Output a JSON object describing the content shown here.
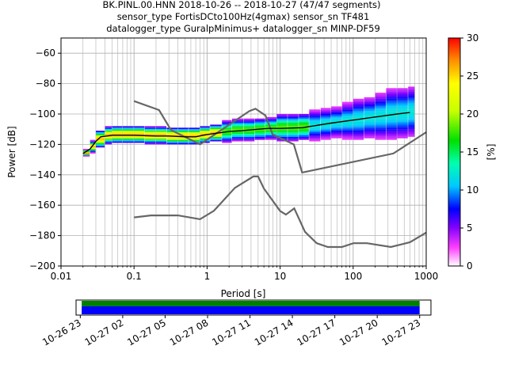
{
  "figure": {
    "title_lines": [
      "BK.PINL.00.HNN   2018-10-26 -- 2018-10-27  (47/47 segments)",
      "sensor_type FortisDCto100Hz(4gmax) sensor_sn TF481",
      "datalogger_type GuralpMinimus+ datalogger_sn MINP-DF59"
    ]
  },
  "colors": {
    "noise_model": "#666666",
    "mean_line": "#000000",
    "grid": "#b0b0b0",
    "coverage_green": "#008000",
    "coverage_blue": "#0000ff"
  },
  "chart_data": [
    {
      "type": "heatmap",
      "name_role": "probabilistic power spectral density",
      "xlabel": "Period [s]",
      "ylabel": "Power [dB]",
      "xscale": "log",
      "xlim": [
        0.01,
        1000
      ],
      "ylim": [
        -200,
        -50
      ],
      "x_ticks": [
        0.01,
        0.1,
        1,
        10,
        100,
        1000
      ],
      "x_tick_labels": [
        "0.01",
        "0.1",
        "1",
        "10",
        "100",
        "1000"
      ],
      "y_ticks": [
        -200,
        -180,
        -160,
        -140,
        -120,
        -100,
        -80,
        -60
      ],
      "y_tick_labels": [
        "−200",
        "−180",
        "−160",
        "−140",
        "−120",
        "−100",
        "−80",
        "−60"
      ],
      "grid": true,
      "colorbar": {
        "label": "[%]",
        "range": [
          0,
          30
        ],
        "ticks": [
          0,
          5,
          10,
          15,
          20,
          25,
          30
        ],
        "tick_labels": [
          "0",
          "5",
          "10",
          "15",
          "20",
          "25",
          "30"
        ],
        "colormap": "pqlx"
      },
      "mean_curve": {
        "period": [
          0.02,
          0.025,
          0.03,
          0.035,
          0.05,
          0.1,
          0.2,
          0.3,
          0.5,
          0.7,
          1,
          2,
          3,
          5,
          7,
          10,
          20,
          50,
          100,
          200,
          400,
          600
        ],
        "power": [
          -126,
          -123,
          -118,
          -115,
          -114,
          -114,
          -114.5,
          -114.5,
          -115,
          -115,
          -113.5,
          -111.5,
          -111,
          -110,
          -109.5,
          -109.5,
          -109,
          -106,
          -104,
          -102,
          -100,
          -99
        ]
      },
      "density_bins": {
        "period_edges": [
          0.02,
          0.025,
          0.03,
          0.04,
          0.05,
          0.07,
          0.1,
          0.14,
          0.2,
          0.28,
          0.4,
          0.56,
          0.8,
          1.1,
          1.6,
          2.2,
          3.2,
          4.5,
          6.3,
          9,
          12.7,
          18,
          25,
          36,
          50,
          71,
          100,
          141,
          200,
          283,
          400,
          566,
          700
        ],
        "center_power": [
          -126,
          -122,
          -117,
          -114.5,
          -114,
          -114,
          -114,
          -114.5,
          -114.5,
          -115,
          -115,
          -115,
          -114,
          -113,
          -112,
          -111,
          -111,
          -110.5,
          -110,
          -109.5,
          -109.5,
          -109,
          -108,
          -107,
          -106,
          -105,
          -104,
          -103,
          -102,
          -100.5,
          -100,
          -99
        ],
        "spread_db": [
          1,
          2,
          3,
          3,
          3,
          3,
          3,
          3,
          3,
          3,
          3,
          3,
          3,
          3,
          4,
          4,
          4,
          4,
          4,
          5,
          5,
          5,
          6,
          6,
          6,
          7,
          8,
          8,
          9,
          10,
          10,
          10
        ]
      },
      "noise_models": [
        {
          "role": "high-noise-model",
          "period": [
            0.1,
            0.22,
            0.32,
            0.8,
            3.8,
            4.6,
            6.3,
            7.9,
            15.4,
            20,
            354.8,
            1000
          ],
          "power": [
            -91.5,
            -97.4,
            -110.5,
            -120,
            -98,
            -96.5,
            -101,
            -113.5,
            -120,
            -138.5,
            -126,
            -112
          ]
        },
        {
          "role": "low-noise-model",
          "period": [
            0.1,
            0.17,
            0.4,
            0.8,
            1.24,
            2.4,
            4.3,
            5,
            6,
            10,
            12,
            15.6,
            21.9,
            31.6,
            45,
            70,
            101,
            154,
            328,
            600,
            1000
          ],
          "power": [
            -168,
            -166.7,
            -166.7,
            -169.2,
            -163.7,
            -148.6,
            -141.1,
            -141.1,
            -149,
            -163.8,
            -166.2,
            -162.1,
            -177.5,
            -185,
            -187.5,
            -187.5,
            -185,
            -185,
            -187.5,
            -184.4,
            -178
          ]
        }
      ]
    },
    {
      "type": "bar",
      "name_role": "data coverage timeline",
      "time_ticks": [
        "10-26 23",
        "10-27 02",
        "10-27 05",
        "10-27 08",
        "10-27 11",
        "10-27 14",
        "10-27 17",
        "10-27 20",
        "10-27 23"
      ],
      "time_range_hours": [
        -0.3,
        24.8
      ],
      "coverage_hours": [
        0.1,
        24.0
      ]
    }
  ]
}
